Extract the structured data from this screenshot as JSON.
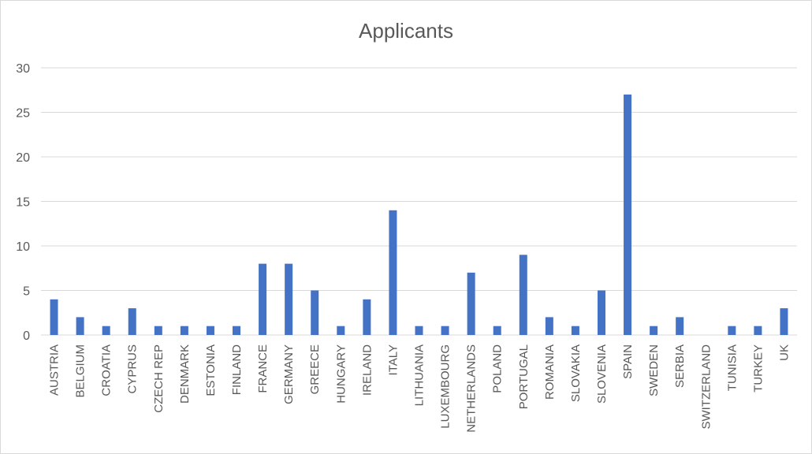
{
  "chart_data": {
    "type": "bar",
    "title": "Applicants",
    "xlabel": "",
    "ylabel": "",
    "ylim": [
      0,
      30
    ],
    "yticks": [
      0,
      5,
      10,
      15,
      20,
      25,
      30
    ],
    "grid": true,
    "legend": "none",
    "bar_color": "#4472c4",
    "categories": [
      "AUSTRIA",
      "BELGIUM",
      "CROATIA",
      "CYPRUS",
      "CZECH REP",
      "DENMARK",
      "ESTONIA",
      "FINLAND",
      "FRANCE",
      "GERMANY",
      "GREECE",
      "HUNGARY",
      "IRELAND",
      "ITALY",
      "LITHUANIA",
      "LUXEMBOURG",
      "NETHERLANDS",
      "POLAND",
      "PORTUGAL",
      "ROMANIA",
      "SLOVAKIA",
      "SLOVENIA",
      "SPAIN",
      "SWEDEN",
      "SERBIA",
      "SWITZERLAND",
      "TUNISIA",
      "TURKEY",
      "UK"
    ],
    "values": [
      4,
      2,
      1,
      3,
      1,
      1,
      1,
      1,
      8,
      8,
      5,
      1,
      4,
      14,
      1,
      1,
      7,
      1,
      9,
      2,
      1,
      5,
      27,
      1,
      2,
      0,
      1,
      1,
      3
    ]
  }
}
